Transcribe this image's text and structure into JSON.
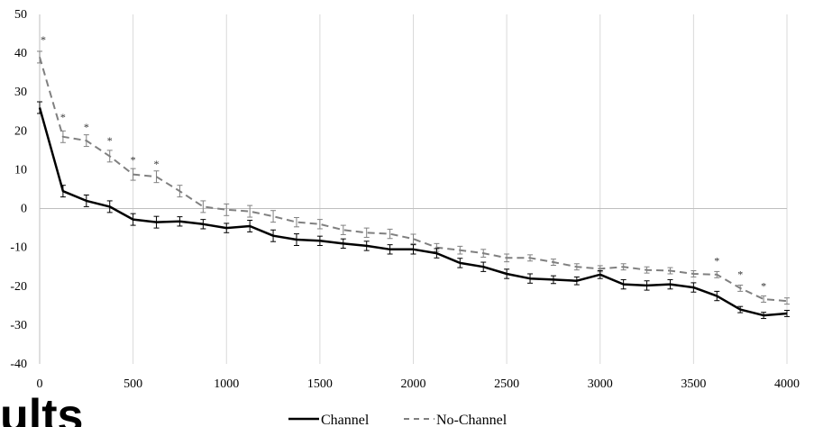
{
  "background_text": "ults",
  "chart_data": {
    "type": "line",
    "title": "",
    "xlabel": "",
    "ylabel": "",
    "xlim": [
      0,
      4000
    ],
    "ylim": [
      -40,
      50
    ],
    "x_ticks": [
      0,
      500,
      1000,
      1500,
      2000,
      2500,
      3000,
      3500,
      4000
    ],
    "y_ticks": [
      -40,
      -30,
      -20,
      -10,
      0,
      10,
      20,
      30,
      40,
      50
    ],
    "grid": "vertical",
    "legend_position": "bottom",
    "x": [
      0,
      125,
      250,
      375,
      500,
      625,
      750,
      875,
      1000,
      1125,
      1250,
      1375,
      1500,
      1625,
      1750,
      1875,
      2000,
      2125,
      2250,
      2375,
      2500,
      2625,
      2750,
      2875,
      3000,
      3125,
      3250,
      3375,
      3500,
      3625,
      3750,
      3875,
      4000
    ],
    "series": [
      {
        "name": "Channel",
        "color": "#000000",
        "dash": "solid",
        "values": [
          26,
          4.5,
          2,
          0.5,
          -2.8,
          -3.5,
          -3.3,
          -4,
          -5,
          -4.5,
          -7,
          -8,
          -8.3,
          -9,
          -9.6,
          -10.5,
          -10.5,
          -11.5,
          -14,
          -15,
          -16.8,
          -18,
          -18.3,
          -18.6,
          -17,
          -19.5,
          -19.8,
          -19.5,
          -20.3,
          -22.5,
          -26,
          -27.5,
          -27
        ],
        "errors": [
          1.5,
          1.5,
          1.5,
          1.5,
          1.5,
          1.5,
          1.2,
          1.2,
          1.2,
          1.5,
          1.5,
          1.5,
          1.2,
          1.2,
          1.2,
          1.2,
          1.2,
          1.2,
          1.2,
          1.2,
          1.2,
          1.2,
          1.0,
          1.0,
          1.0,
          1.2,
          1.2,
          1.2,
          1.2,
          1.2,
          0.8,
          0.8,
          0.8
        ]
      },
      {
        "name": "No-Channel",
        "color": "#808080",
        "dash": "dashed",
        "values": [
          39,
          18.5,
          17.5,
          13.5,
          8.8,
          8.2,
          4.5,
          0.5,
          -0.3,
          -0.7,
          -2,
          -3.5,
          -4,
          -5.5,
          -6.2,
          -6.5,
          -7.8,
          -10,
          -10.7,
          -11.5,
          -12.7,
          -12.7,
          -13.8,
          -15,
          -15.5,
          -15,
          -15.8,
          -16,
          -16.8,
          -17,
          -20.5,
          -23.3,
          -23.8
        ],
        "errors": [
          1.5,
          1.5,
          1.5,
          1.5,
          1.5,
          1.5,
          1.5,
          1.5,
          1.5,
          1.5,
          1.5,
          1.2,
          1.2,
          1.2,
          1.2,
          1.2,
          1.2,
          1.0,
          1.0,
          1.0,
          1.0,
          0.8,
          0.8,
          0.8,
          0.8,
          0.8,
          0.8,
          0.8,
          0.8,
          0.8,
          0.8,
          0.8,
          0.8
        ]
      }
    ],
    "annotations": [
      {
        "text": "*",
        "x": 0,
        "y": 44
      },
      {
        "text": "*",
        "x": 125,
        "y": 24
      },
      {
        "text": "*",
        "x": 250,
        "y": 21.5
      },
      {
        "text": "*",
        "x": 375,
        "y": 18
      },
      {
        "text": "*",
        "x": 500,
        "y": 13
      },
      {
        "text": "*",
        "x": 625,
        "y": 12
      },
      {
        "text": "*",
        "x": 3625,
        "y": -13
      },
      {
        "text": "*",
        "x": 3750,
        "y": -16.5
      },
      {
        "text": "*",
        "x": 3875,
        "y": -19.5
      }
    ]
  }
}
